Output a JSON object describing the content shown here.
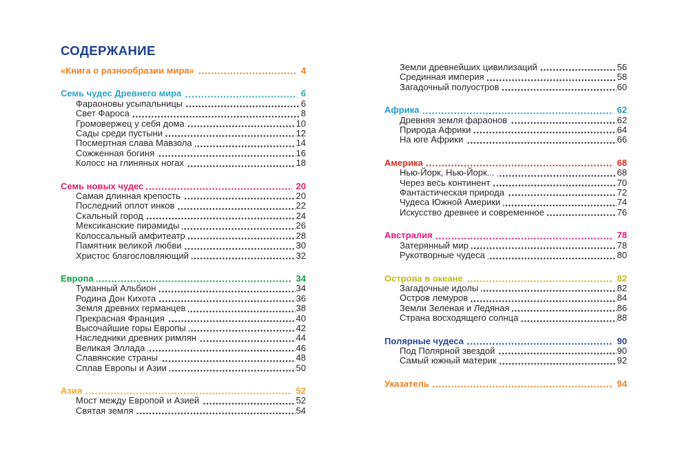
{
  "page_title": {
    "text": "СОДЕРЖАНИЕ",
    "color": "#1e3e90"
  },
  "toc": {
    "left": [
      {
        "heading": {
          "label": "«Книга о разнообразии мира»",
          "page": "4",
          "color": "#ef8023"
        },
        "items": []
      },
      {
        "heading": {
          "label": "Семь чудес Древнего мира",
          "page": "6",
          "color": "#2aa5c8"
        },
        "items": [
          {
            "label": "Фараоновы усыпальницы",
            "page": "6"
          },
          {
            "label": "Свет Фароса",
            "page": "8"
          },
          {
            "label": "Громовержец у себя дома",
            "page": "10"
          },
          {
            "label": "Сады среди пустыни",
            "page": "12"
          },
          {
            "label": "Посмертная слава Мавзола",
            "page": "14"
          },
          {
            "label": "Сожженная богиня",
            "page": "16"
          },
          {
            "label": "Колосс на глиняных ногах",
            "page": "18"
          }
        ]
      },
      {
        "heading": {
          "label": "Семь новых чудес",
          "page": "20",
          "color": "#e01e69"
        },
        "items": [
          {
            "label": "Самая длинная крепость",
            "page": "20"
          },
          {
            "label": "Последний оплот инков",
            "page": "22"
          },
          {
            "label": "Скальный город",
            "page": "24"
          },
          {
            "label": "Мексиканские пирамиды",
            "page": "26"
          },
          {
            "label": "Колоссальный амфитеатр",
            "page": "28"
          },
          {
            "label": "Памятник великой любви",
            "page": "30"
          },
          {
            "label": "Христос благословляющий",
            "page": "32"
          }
        ]
      },
      {
        "heading": {
          "label": "Европа",
          "page": "34",
          "color": "#12a14b"
        },
        "items": [
          {
            "label": "Туманный Альбион",
            "page": "34"
          },
          {
            "label": "Родина Дон Кихота",
            "page": "36"
          },
          {
            "label": "Земля древних германцев",
            "page": "38"
          },
          {
            "label": "Прекрасная Франция",
            "page": "40"
          },
          {
            "label": "Высочайшие горы Европы",
            "page": "42"
          },
          {
            "label": "Наследники древних римлян",
            "page": "44"
          },
          {
            "label": "Великая Эллада",
            "page": "46"
          },
          {
            "label": "Славянские страны",
            "page": "48"
          },
          {
            "label": "Сплав Европы и Азии",
            "page": "50"
          }
        ]
      },
      {
        "heading": {
          "label": "Азия",
          "page": "52",
          "color": "#f2a730"
        },
        "items": [
          {
            "label": "Мост между Европой и Азией",
            "page": "52"
          },
          {
            "label": "Святая земля",
            "page": "54"
          }
        ]
      }
    ],
    "right": [
      {
        "heading": null,
        "items": [
          {
            "label": "Земли древнейших цивилизаций",
            "page": "56"
          },
          {
            "label": "Срединная империя",
            "page": "58"
          },
          {
            "label": "Загадочный полуостров",
            "page": "60"
          }
        ]
      },
      {
        "heading": {
          "label": "Африка",
          "page": "62",
          "color": "#2599d5"
        },
        "items": [
          {
            "label": "Древняя земля фараонов",
            "page": "62"
          },
          {
            "label": "Природа Африки",
            "page": "64"
          },
          {
            "label": "На юге Африки",
            "page": "66"
          }
        ]
      },
      {
        "heading": {
          "label": "Америка",
          "page": "68",
          "color": "#e42a24"
        },
        "items": [
          {
            "label": "Нью-Йорк, Нью-Йорк...",
            "page": "68"
          },
          {
            "label": "Через весь континент",
            "page": "70"
          },
          {
            "label": "Фантастическая природа",
            "page": "72"
          },
          {
            "label": "Чудеса Южной Америки",
            "page": "74"
          },
          {
            "label": "Искусство древнее и современное",
            "page": "76"
          }
        ]
      },
      {
        "heading": {
          "label": "Австралия",
          "page": "78",
          "color": "#eb1881"
        },
        "items": [
          {
            "label": "Затерянный мир",
            "page": "78"
          },
          {
            "label": "Рукотворные чудеса",
            "page": "80"
          }
        ]
      },
      {
        "heading": {
          "label": "Острова в океане",
          "page": "82",
          "color": "#c4ba1e"
        },
        "items": [
          {
            "label": "Загадочные идолы",
            "page": "82"
          },
          {
            "label": "Остров лемуров",
            "page": "84"
          },
          {
            "label": "Земли Зеленая и Ледяная",
            "page": "86"
          },
          {
            "label": "Страна восходящего солнца",
            "page": "88"
          }
        ]
      },
      {
        "heading": {
          "label": "Полярные чудеса",
          "page": "90",
          "color": "#2a4798"
        },
        "items": [
          {
            "label": "Под Полярной звездой",
            "page": "90"
          },
          {
            "label": "Самый южный материк",
            "page": "92"
          }
        ]
      },
      {
        "heading": {
          "label": "Указатель",
          "page": "94",
          "color": "#ef8023"
        },
        "items": []
      }
    ]
  }
}
